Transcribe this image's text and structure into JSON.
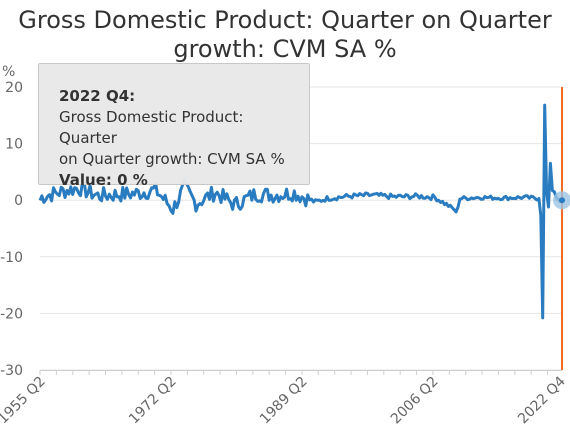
{
  "chart_data": {
    "type": "line",
    "title_line1": "Gross Domestic Product: Quarter on Quarter",
    "title_line2": "growth: CVM SA %",
    "ylabel": "%",
    "ylim": [
      -30,
      20
    ],
    "yticks": [
      20,
      10,
      0,
      -10,
      -20,
      -30
    ],
    "xticks": [
      "1955 Q2",
      "1972 Q2",
      "1989 Q2",
      "2006 Q2",
      "2022 Q4"
    ],
    "grid": true,
    "colors": {
      "line": "#2a7cc0",
      "highlight_line": "#f06a2a",
      "marker_halo": "#9cc4e4"
    },
    "series": [
      {
        "x": [
          "1955 Q2",
          "1957 Q4",
          "1960 Q1",
          "1962 Q3",
          "1965 Q1",
          "1967 Q3",
          "1970 Q1",
          "1972 Q2",
          "1973 Q4",
          "1975 Q2",
          "1977 Q4",
          "1980 Q2",
          "1983 Q1",
          "1985 Q3",
          "1988 Q1",
          "1989 Q2",
          "1990 Q4",
          "1992 Q2",
          "1995 Q1",
          "1998 Q1",
          "2001 Q1",
          "2004 Q1",
          "2006 Q2",
          "2008 Q4",
          "2009 Q1",
          "2009 Q3",
          "2012 Q1",
          "2015 Q1",
          "2018 Q1",
          "2019 Q4",
          "2020 Q1",
          "2020 Q2",
          "2020 Q3",
          "2020 Q4",
          "2021 Q1",
          "2021 Q2",
          "2021 Q3",
          "2021 Q4",
          "2022 Q1",
          "2022 Q2",
          "2022 Q3",
          "2022 Q4"
        ],
        "values": [
          0.6,
          1.5,
          2.2,
          0.8,
          1.0,
          1.2,
          1.8,
          -1.6,
          2.3,
          -0.6,
          1.4,
          -0.8,
          1.1,
          0.9,
          1.3,
          0.5,
          -0.3,
          0.3,
          0.7,
          0.9,
          0.6,
          0.7,
          0.5,
          -1.6,
          -2.3,
          0.3,
          0.5,
          0.4,
          0.5,
          0.3,
          -2.7,
          -20.8,
          16.8,
          1.3,
          -1.2,
          6.5,
          1.7,
          1.5,
          0.5,
          0.1,
          -0.2,
          0.0
        ]
      }
    ],
    "tooltip": {
      "period": "2022 Q4:",
      "series_line1": "Gross Domestic Product: Quarter",
      "series_line2": "on Quarter growth: CVM SA %",
      "value_text": "Value: 0 %"
    }
  }
}
